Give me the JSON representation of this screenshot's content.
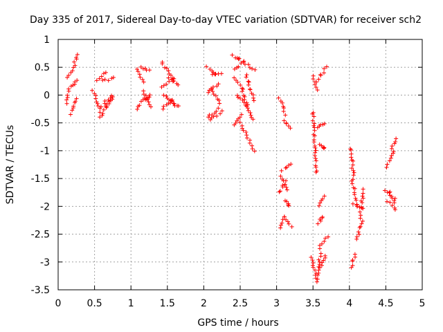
{
  "chart_data": {
    "type": "scatter",
    "title": "Day 335 of 2017, Sidereal Day-to-day VTEC variation (SDTVAR) for receiver sch2",
    "xlabel": "GPS time / hours",
    "ylabel": "SDTVAR / TECUs",
    "xlim": [
      0,
      5
    ],
    "ylim": [
      -3.5,
      1
    ],
    "xticks": [
      0,
      0.5,
      1,
      1.5,
      2,
      2.5,
      3,
      3.5,
      4,
      4.5,
      5
    ],
    "xtick_labels": [
      "0",
      "0.5",
      "1",
      "1.5",
      "2",
      "2.5",
      "3",
      "3.5",
      "4",
      "4.5",
      "5"
    ],
    "yticks": [
      1,
      0.5,
      0,
      -0.5,
      -1,
      -1.5,
      -2,
      -2.5,
      -3,
      -3.5
    ],
    "ytick_labels": [
      "1",
      "0.5",
      "0",
      "-0.5",
      "-1",
      "-1.5",
      "-2",
      "-2.5",
      "-3",
      "-3.5"
    ],
    "grid": true,
    "marker": "+",
    "color": "#ff0000",
    "segments": [
      [
        0.12,
        0.15,
        -0.15,
        0.12
      ],
      [
        0.12,
        0.22,
        0.3,
        0.48
      ],
      [
        0.22,
        0.26,
        0.55,
        0.72
      ],
      [
        0.18,
        0.26,
        -0.33,
        -0.05
      ],
      [
        0.18,
        0.26,
        0.15,
        0.25
      ],
      [
        0.48,
        0.58,
        0.08,
        -0.3
      ],
      [
        0.52,
        0.66,
        0.28,
        0.4
      ],
      [
        0.58,
        0.72,
        -0.4,
        -0.1
      ],
      [
        0.6,
        0.74,
        -0.2,
        0.0
      ],
      [
        0.62,
        0.76,
        0.25,
        0.3
      ],
      [
        0.66,
        0.76,
        -0.2,
        -0.05
      ],
      [
        1.08,
        1.18,
        0.45,
        0.25
      ],
      [
        1.08,
        1.2,
        -0.25,
        -0.05
      ],
      [
        1.14,
        1.25,
        0.5,
        0.45
      ],
      [
        1.16,
        1.27,
        0.08,
        -0.2
      ],
      [
        1.2,
        1.26,
        -0.1,
        0.0
      ],
      [
        1.42,
        1.6,
        0.6,
        0.25
      ],
      [
        1.43,
        1.58,
        0.15,
        0.3
      ],
      [
        1.43,
        1.58,
        -0.25,
        -0.08
      ],
      [
        1.45,
        1.6,
        0.0,
        -0.2
      ],
      [
        1.52,
        1.65,
        0.3,
        0.2
      ],
      [
        1.55,
        1.66,
        -0.1,
        -0.2
      ],
      [
        2.04,
        2.17,
        0.5,
        0.38
      ],
      [
        2.05,
        2.2,
        0.05,
        0.2
      ],
      [
        2.06,
        2.2,
        -0.4,
        -0.25
      ],
      [
        2.08,
        2.25,
        -0.45,
        -0.3
      ],
      [
        2.1,
        2.23,
        0.1,
        -0.15
      ],
      [
        2.12,
        2.23,
        0.35,
        0.4
      ],
      [
        2.4,
        2.5,
        0.7,
        0.65
      ],
      [
        2.42,
        2.54,
        0.45,
        0.6
      ],
      [
        2.43,
        2.55,
        0.3,
        0.1
      ],
      [
        2.43,
        2.52,
        -0.55,
        -0.35
      ],
      [
        2.45,
        2.6,
        0.0,
        -0.2
      ],
      [
        2.5,
        2.7,
        -0.5,
        -1.0
      ],
      [
        2.52,
        2.68,
        0.05,
        -0.45
      ],
      [
        2.55,
        2.7,
        0.6,
        0.45
      ],
      [
        2.58,
        2.7,
        0.35,
        -0.1
      ],
      [
        3.04,
        3.12,
        -0.05,
        -0.35
      ],
      [
        3.1,
        3.18,
        -0.45,
        -0.6
      ],
      [
        3.04,
        3.12,
        -1.75,
        -1.55
      ],
      [
        3.06,
        3.14,
        -1.45,
        -1.7
      ],
      [
        3.08,
        3.2,
        -1.35,
        -1.25
      ],
      [
        3.06,
        3.1,
        -2.4,
        -2.2
      ],
      [
        3.12,
        3.2,
        -2.2,
        -2.35
      ],
      [
        3.12,
        3.18,
        -1.9,
        -2.0
      ],
      [
        3.5,
        3.55,
        0.35,
        0.1
      ],
      [
        3.55,
        3.68,
        0.25,
        0.5
      ],
      [
        3.5,
        3.55,
        -0.3,
        -1.4
      ],
      [
        3.55,
        3.66,
        -0.6,
        -0.5
      ],
      [
        3.6,
        3.66,
        -0.9,
        -0.95
      ],
      [
        3.48,
        3.55,
        -2.9,
        -3.3
      ],
      [
        3.55,
        3.6,
        -3.35,
        -2.85
      ],
      [
        3.58,
        3.65,
        -2.0,
        -1.8
      ],
      [
        3.58,
        3.63,
        -2.3,
        -2.2
      ],
      [
        3.58,
        3.7,
        -2.75,
        -2.55
      ],
      [
        3.6,
        3.68,
        -3.1,
        -2.9
      ],
      [
        4.02,
        4.06,
        -0.95,
        -1.5
      ],
      [
        4.04,
        4.1,
        -1.55,
        -1.95
      ],
      [
        4.06,
        4.18,
        -1.95,
        -2.05
      ],
      [
        4.02,
        4.08,
        -3.1,
        -2.85
      ],
      [
        4.1,
        4.18,
        -2.6,
        -2.25
      ],
      [
        4.14,
        4.2,
        -2.2,
        -1.7
      ],
      [
        4.52,
        4.6,
        -1.3,
        -1.0
      ],
      [
        4.58,
        4.63,
        -0.95,
        -0.8
      ],
      [
        4.5,
        4.62,
        -1.7,
        -1.85
      ],
      [
        4.52,
        4.64,
        -1.9,
        -2.05
      ],
      [
        4.55,
        4.62,
        -1.75,
        -1.95
      ]
    ]
  }
}
